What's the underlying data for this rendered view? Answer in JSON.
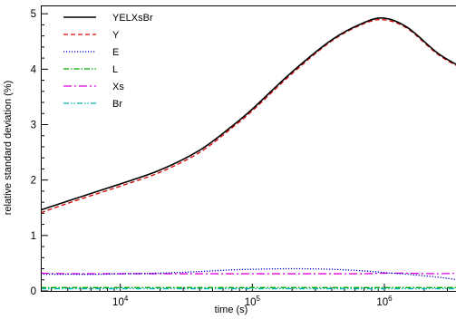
{
  "chart_data": {
    "type": "line",
    "title": "",
    "xlabel": "time (s)",
    "ylabel": "relative standard deviation (%)",
    "x_scale": "log",
    "xlim": [
      2500,
      3600000
    ],
    "ylim": [
      0,
      5.15
    ],
    "y_ticks": [
      "0",
      "1",
      "2",
      "3",
      "4",
      "5"
    ],
    "x_ticks": [
      {
        "value": 10000,
        "base": "10",
        "exp": "4"
      },
      {
        "value": 100000,
        "base": "10",
        "exp": "5"
      },
      {
        "value": 1000000,
        "base": "10",
        "exp": "6"
      }
    ],
    "legend_position": "top-left",
    "x": [
      2500,
      4000,
      7000,
      10000,
      20000,
      40000,
      70000,
      100000,
      200000,
      400000,
      700000,
      1000000,
      1500000,
      2500000,
      3600000
    ],
    "series": [
      {
        "name": "YELXsBr",
        "color": "#000000",
        "dash": "solid",
        "values": [
          1.46,
          1.62,
          1.81,
          1.93,
          2.18,
          2.54,
          2.97,
          3.28,
          3.95,
          4.53,
          4.84,
          4.92,
          4.75,
          4.3,
          4.07
        ]
      },
      {
        "name": "Y",
        "color": "#dd0000",
        "dash": "dashed",
        "values": [
          1.41,
          1.58,
          1.77,
          1.89,
          2.14,
          2.5,
          2.94,
          3.25,
          3.92,
          4.51,
          4.82,
          4.89,
          4.73,
          4.28,
          4.05
        ]
      },
      {
        "name": "E",
        "color": "#0000cc",
        "dash": "dotted",
        "values": [
          0.3,
          0.3,
          0.3,
          0.31,
          0.32,
          0.35,
          0.38,
          0.39,
          0.4,
          0.39,
          0.36,
          0.33,
          0.3,
          0.25,
          0.2
        ]
      },
      {
        "name": "L",
        "color": "#00aa00",
        "dash": "dashdot",
        "values": [
          0.06,
          0.06,
          0.06,
          0.06,
          0.06,
          0.06,
          0.06,
          0.06,
          0.06,
          0.06,
          0.06,
          0.06,
          0.06,
          0.06,
          0.06
        ]
      },
      {
        "name": "Xs",
        "color": "#dd00dd",
        "dash": "longdashdot",
        "values": [
          0.32,
          0.31,
          0.31,
          0.31,
          0.31,
          0.31,
          0.31,
          0.31,
          0.31,
          0.31,
          0.31,
          0.32,
          0.32,
          0.31,
          0.32
        ]
      },
      {
        "name": "Br",
        "color": "#00bbbb",
        "dash": "dashdotdot",
        "values": [
          0.04,
          0.04,
          0.04,
          0.04,
          0.04,
          0.04,
          0.04,
          0.04,
          0.04,
          0.04,
          0.04,
          0.04,
          0.04,
          0.04,
          0.04
        ]
      }
    ]
  }
}
